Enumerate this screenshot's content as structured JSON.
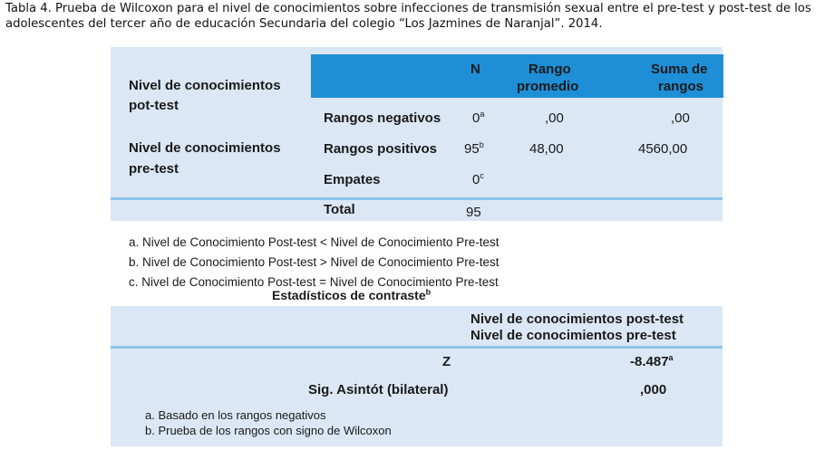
{
  "caption": "Tabla 4. Prueba de Wilcoxon para el nivel de conocimientos sobre infecciones de transmisión sexual entre el pre-test y post-test de los adolescentes del tercer año de educación Secundaria del colegio “Los Jazmines de Naranjal”. 2014.",
  "ranks_table": {
    "row_label_post_1": "Nivel de conocimientos",
    "row_label_post_2": "pot-test",
    "row_label_pre_1": "Nivel de conocimientos",
    "row_label_pre_2": "pre-test",
    "headers": {
      "n": "N",
      "rango_1": "Rango",
      "rango_2": "promedio",
      "suma_1": "Suma de",
      "suma_2": "rangos"
    },
    "rows": [
      {
        "label": "Rangos negativos",
        "n": "0",
        "n_sup": "a",
        "rango": ",00",
        "suma": ",00"
      },
      {
        "label": "Rangos positivos",
        "n": "95",
        "n_sup": "b",
        "rango": "48,00",
        "suma": "4560,00"
      },
      {
        "label": "Empates",
        "n": "0",
        "n_sup": "c",
        "rango": "",
        "suma": ""
      }
    ],
    "total": {
      "label": "Total",
      "n": "95"
    }
  },
  "ranks_notes": [
    "a. Nivel de Conocimiento Post-test < Nivel de Conocimiento Pre-test",
    "b. Nivel de Conocimiento Post-test > Nivel de Conocimiento Pre-test",
    "c. Nivel de Conocimiento Post-test = Nivel de Conocimiento Pre-test"
  ],
  "stats_table": {
    "title": "Estadísticos de contraste",
    "title_sup": "b",
    "header_1": "Nivel de conocimientos post-test",
    "header_2": "Nivel de conocimientos pre-test",
    "z_label": "Z",
    "z_value": "-8.487",
    "z_sup": "a",
    "sig_label": "Sig. Asintót (bilateral)",
    "sig_value": ",000",
    "notes": [
      "a. Basado en los rangos negativos",
      "b. Prueba de los rangos con signo de Wilcoxon"
    ]
  },
  "colors": {
    "panel": "#dbe7f5",
    "header": "#1e8fd6",
    "divider": "#8fc3ea"
  }
}
